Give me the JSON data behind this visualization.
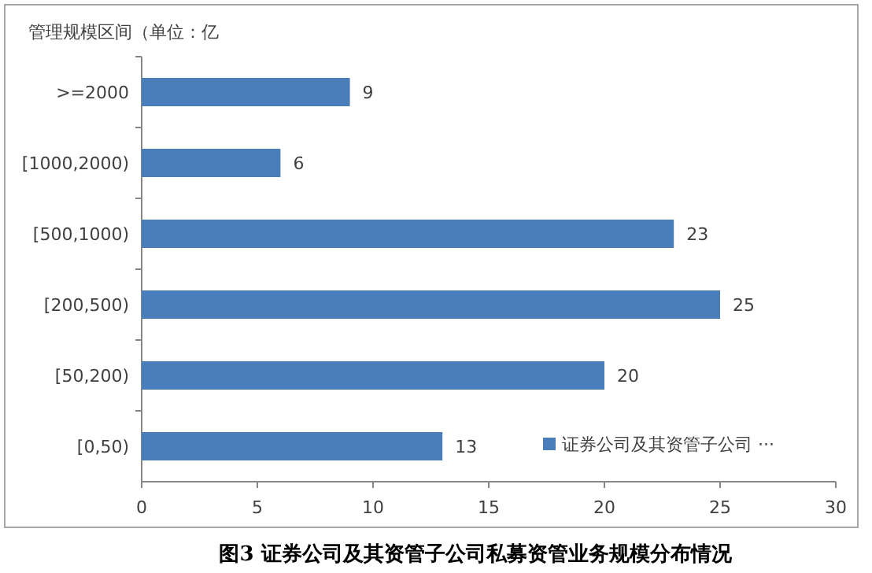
{
  "chart_data": {
    "type": "bar",
    "orientation": "horizontal",
    "title": "图3  证券公司及其资管子公司私募资管业务规模分布情况",
    "ylabel": "管理规模区间（单位：亿",
    "categories": [
      ">=2000",
      "[1000,2000)",
      "[500,1000)",
      "[200,500)",
      "[50,200)",
      "[0,50)"
    ],
    "series": [
      {
        "name": "证券公司及其资管子公司 ···",
        "color": "#4a7ebb",
        "values": [
          9,
          6,
          23,
          25,
          20,
          13
        ]
      }
    ],
    "xlim": [
      0,
      30
    ],
    "xticks": [
      0,
      5,
      10,
      15,
      20,
      25,
      30
    ],
    "data_labels": true,
    "legend": "bottom right",
    "grid": false
  }
}
